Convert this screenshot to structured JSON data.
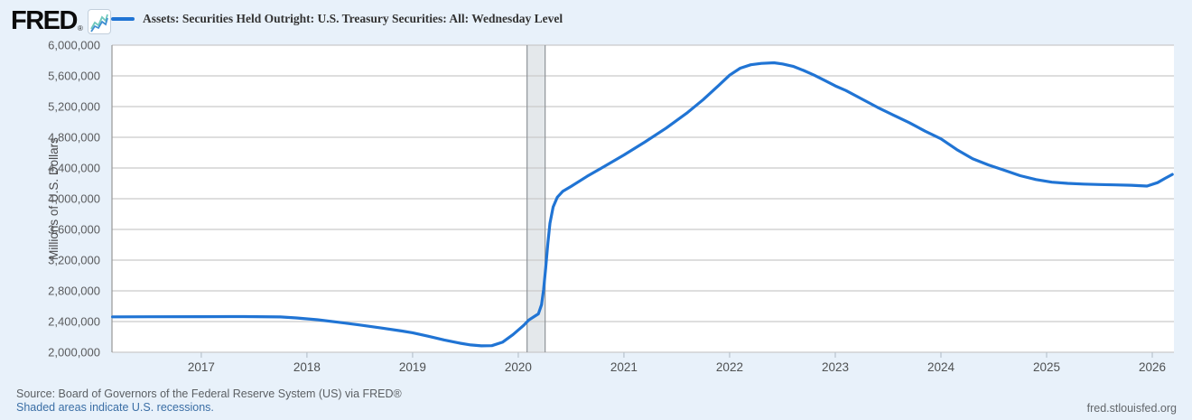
{
  "header": {
    "logo_text": "FRED",
    "logo_registered_mark": "®"
  },
  "legend": {
    "series_label": "Assets: Securities Held Outright: U.S. Treasury Securities: All: Wednesday Level",
    "swatch_color": "#2074d4"
  },
  "chart_data": {
    "type": "line",
    "title": "Assets: Securities Held Outright: U.S. Treasury Securities: All: Wednesday Level",
    "xlabel": "",
    "ylabel": "Millions of U.S. Dollars",
    "x_range": [
      2016.155,
      2026.205
    ],
    "ylim": [
      2000000,
      6000000
    ],
    "y_ticks": [
      2000000,
      2400000,
      2800000,
      3200000,
      3600000,
      4000000,
      4400000,
      4800000,
      5200000,
      5600000,
      6000000
    ],
    "x_ticks": [
      2017,
      2018,
      2019,
      2020,
      2021,
      2022,
      2023,
      2024,
      2025,
      2026
    ],
    "grid": true,
    "legend_position": "top-left",
    "recession_bands": [
      {
        "start": 2020.083,
        "end": 2020.254
      }
    ],
    "series": [
      {
        "name": "Assets: Securities Held Outright: U.S. Treasury Securities: All: Wednesday Level",
        "color": "#2074d4",
        "x": [
          2016.16,
          2016.5,
          2017.0,
          2017.4,
          2017.75,
          2017.9,
          2018.1,
          2018.3,
          2018.5,
          2018.7,
          2018.9,
          2019.0,
          2019.15,
          2019.3,
          2019.45,
          2019.55,
          2019.65,
          2019.75,
          2019.85,
          2019.95,
          2020.05,
          2020.1,
          2020.15,
          2020.19,
          2020.22,
          2020.24,
          2020.26,
          2020.28,
          2020.3,
          2020.33,
          2020.37,
          2020.42,
          2020.5,
          2020.65,
          2020.8,
          2021.0,
          2021.2,
          2021.4,
          2021.6,
          2021.75,
          2021.9,
          2022.0,
          2022.1,
          2022.2,
          2022.3,
          2022.42,
          2022.5,
          2022.6,
          2022.7,
          2022.8,
          2022.9,
          2023.0,
          2023.1,
          2023.25,
          2023.4,
          2023.55,
          2023.7,
          2023.85,
          2024.0,
          2024.15,
          2024.3,
          2024.45,
          2024.6,
          2024.75,
          2024.9,
          2025.05,
          2025.2,
          2025.35,
          2025.5,
          2025.65,
          2025.8,
          2025.95,
          2026.05,
          2026.12,
          2026.19
        ],
        "values": [
          2461000,
          2462000,
          2464000,
          2465000,
          2460000,
          2447000,
          2424000,
          2391000,
          2355000,
          2317000,
          2276000,
          2254000,
          2208000,
          2160000,
          2118000,
          2095000,
          2083000,
          2086000,
          2130000,
          2230000,
          2350000,
          2420000,
          2465000,
          2500000,
          2620000,
          2820000,
          3100000,
          3420000,
          3680000,
          3890000,
          4020000,
          4095000,
          4160000,
          4290000,
          4410000,
          4570000,
          4740000,
          4920000,
          5120000,
          5290000,
          5480000,
          5610000,
          5700000,
          5745000,
          5762000,
          5770000,
          5755000,
          5725000,
          5670000,
          5610000,
          5540000,
          5470000,
          5410000,
          5300000,
          5190000,
          5090000,
          4990000,
          4880000,
          4780000,
          4640000,
          4520000,
          4440000,
          4370000,
          4300000,
          4250000,
          4215000,
          4200000,
          4190000,
          4185000,
          4180000,
          4175000,
          4165000,
          4210000,
          4265000,
          4316000
        ]
      }
    ]
  },
  "footer": {
    "source_text": "Source: Board of Governors of the Federal Reserve System (US) via FRED®",
    "recession_note": "Shaded areas indicate U.S. recessions.",
    "site_url": "fred.stlouisfed.org"
  },
  "colors": {
    "page_background": "#e8f1fa",
    "plot_background": "#ffffff",
    "gridline": "#c9c9c9",
    "axis_border": "#979797",
    "x_tick": "#b9c3cd",
    "x_tick_label": "#4f5152",
    "y_tick_label": "#5a5b5d",
    "y_axis_title": "#4a4a4c",
    "recession_band_fill": "#e4e8eb",
    "recession_band_edge": "#8f9499",
    "series_line": "#2074d4",
    "link": "#3a6ea5",
    "footer_text": "#5b5f63"
  }
}
